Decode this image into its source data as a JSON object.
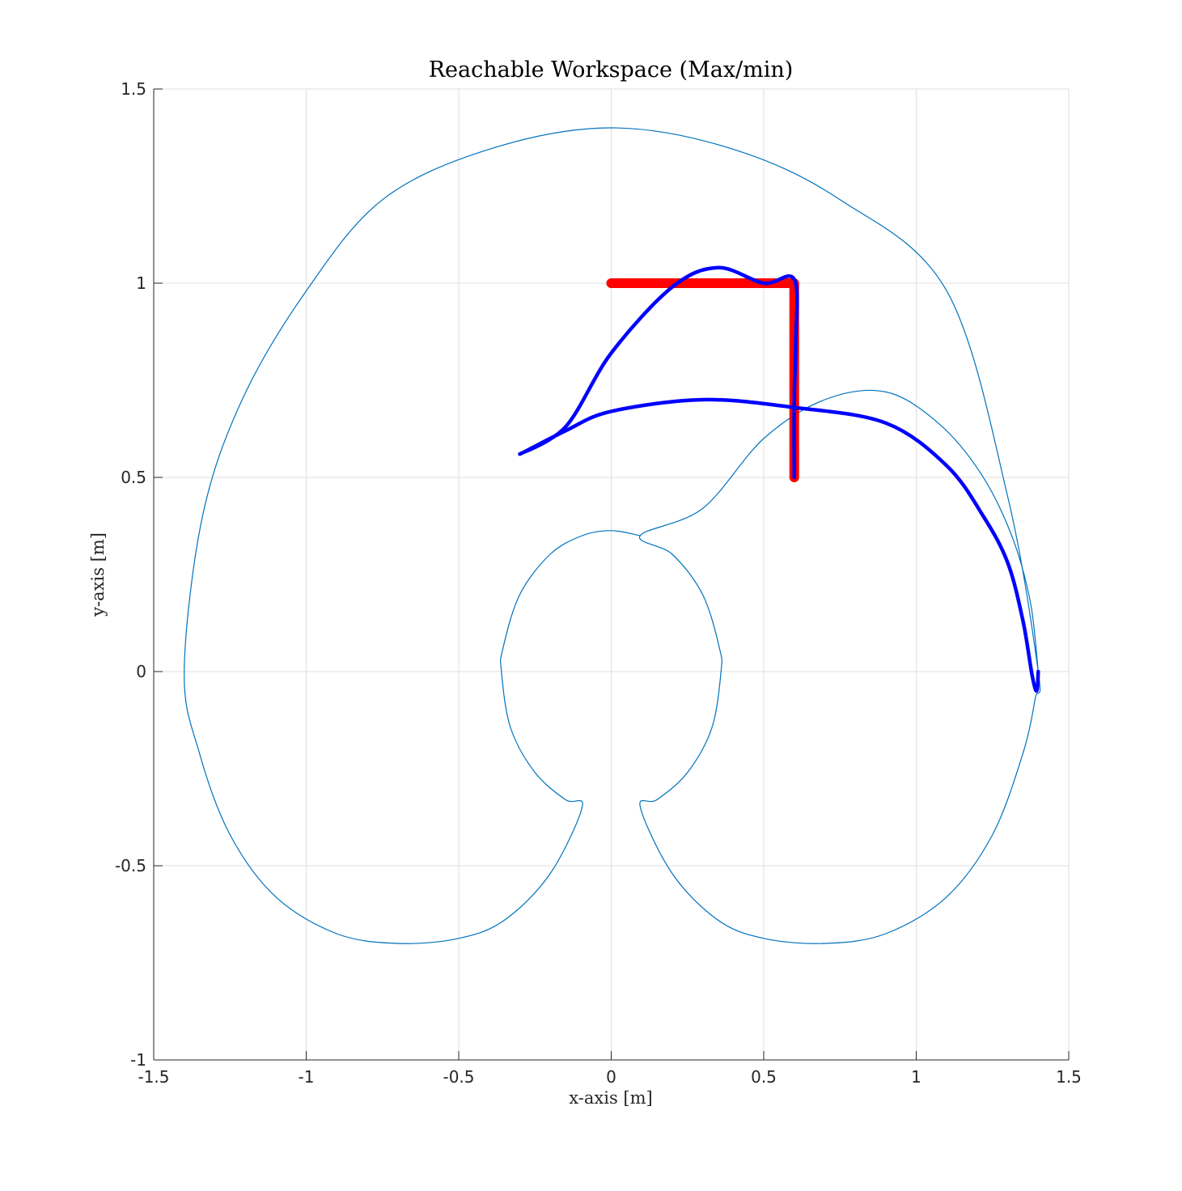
{
  "chart_data": {
    "type": "line",
    "title": "Reachable Workspace (Max/min)",
    "xlabel": "x-axis [m]",
    "ylabel": "y-axis [m]",
    "xlim": [
      -1.5,
      1.5
    ],
    "ylim": [
      -1,
      1.5
    ],
    "grid": true,
    "x_ticks": [
      -1.5,
      -1,
      -0.5,
      0,
      0.5,
      1,
      1.5
    ],
    "x_tick_labels": [
      "-1.5",
      "-1",
      "-0.5",
      "0",
      "0.5",
      "1",
      "1.5"
    ],
    "y_ticks": [
      -1,
      -0.5,
      0,
      0.5,
      1,
      1.5
    ],
    "y_tick_labels": [
      "-1",
      "-0.5",
      "0",
      "0.5",
      "1",
      "1.5"
    ],
    "series": [
      {
        "kind": "workspace-boundary",
        "color": "#0072BD",
        "points": [
          [
            1.4,
            0.0
          ],
          [
            1.374,
            0.18
          ],
          [
            1.313,
            0.35
          ],
          [
            1.212,
            0.51
          ],
          [
            1.072,
            0.64
          ],
          [
            0.9,
            0.72
          ],
          [
            0.7,
            0.7
          ],
          [
            0.5,
            0.6
          ],
          [
            0.3,
            0.42
          ],
          [
            0.095,
            0.35
          ],
          [
            0.2,
            0.302
          ],
          [
            0.3,
            0.198
          ],
          [
            0.355,
            0.06
          ],
          [
            0.36,
            0.0
          ],
          [
            0.33,
            -0.145
          ],
          [
            0.25,
            -0.26
          ],
          [
            0.15,
            -0.33
          ],
          [
            0.095,
            -0.348
          ],
          [
            0.2,
            -0.52
          ],
          [
            0.35,
            -0.64
          ],
          [
            0.5,
            -0.687
          ],
          [
            0.7,
            -0.7
          ],
          [
            0.9,
            -0.675
          ],
          [
            1.1,
            -0.58
          ],
          [
            1.25,
            -0.42
          ],
          [
            1.35,
            -0.21
          ],
          [
            1.39,
            -0.07
          ],
          [
            1.4,
            0.0
          ],
          [
            1.3,
            0.45
          ],
          [
            1.1,
            0.98
          ],
          [
            0.75,
            1.215
          ],
          [
            0.4,
            1.345
          ],
          [
            0.0,
            1.4
          ],
          [
            -0.4,
            1.345
          ],
          [
            -0.75,
            1.215
          ],
          [
            -1.0,
            0.98
          ],
          [
            -1.21,
            0.7
          ],
          [
            -1.34,
            0.4
          ],
          [
            -1.4,
            0.0
          ],
          [
            -1.35,
            -0.21
          ],
          [
            -1.25,
            -0.42
          ],
          [
            -1.1,
            -0.58
          ],
          [
            -0.9,
            -0.675
          ],
          [
            -0.7,
            -0.7
          ],
          [
            -0.5,
            -0.687
          ],
          [
            -0.35,
            -0.64
          ],
          [
            -0.2,
            -0.52
          ],
          [
            -0.095,
            -0.348
          ],
          [
            -0.15,
            -0.33
          ],
          [
            -0.25,
            -0.26
          ],
          [
            -0.33,
            -0.145
          ],
          [
            -0.36,
            0.0
          ],
          [
            -0.355,
            0.06
          ],
          [
            -0.3,
            0.198
          ],
          [
            -0.2,
            0.302
          ],
          [
            -0.095,
            0.35
          ],
          [
            0.0,
            0.363
          ],
          [
            0.095,
            0.35
          ]
        ]
      },
      {
        "kind": "desired-path",
        "color": "#FF0000",
        "points": [
          [
            0.0,
            1.0
          ],
          [
            0.6,
            1.0
          ],
          [
            0.6,
            0.5
          ]
        ]
      },
      {
        "kind": "actual-trajectory",
        "color": "#0000FF",
        "points": [
          [
            1.4,
            0.0
          ],
          [
            1.395,
            -0.05
          ],
          [
            1.38,
            -0.01
          ],
          [
            1.35,
            0.13
          ],
          [
            1.3,
            0.28
          ],
          [
            1.22,
            0.4
          ],
          [
            1.1,
            0.53
          ],
          [
            0.9,
            0.64
          ],
          [
            0.6,
            0.68
          ],
          [
            0.3,
            0.7
          ],
          [
            0.0,
            0.67
          ],
          [
            -0.15,
            0.62
          ],
          [
            -0.3,
            0.56
          ],
          [
            -0.15,
            0.63
          ],
          [
            0.0,
            0.82
          ],
          [
            0.2,
            0.99
          ],
          [
            0.35,
            1.04
          ],
          [
            0.5,
            1.0
          ],
          [
            0.6,
            1.01
          ],
          [
            0.605,
            0.85
          ],
          [
            0.6,
            0.7
          ],
          [
            0.6,
            0.5
          ]
        ]
      }
    ]
  }
}
